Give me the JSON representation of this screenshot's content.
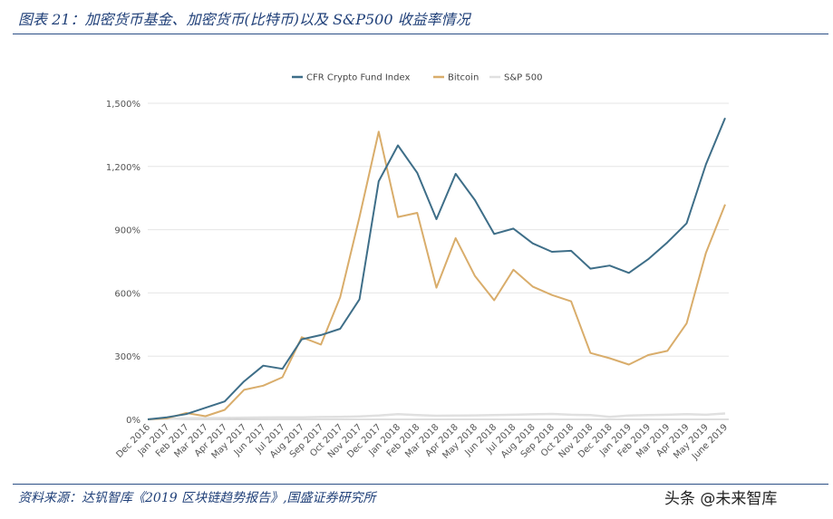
{
  "header": {
    "title": "图表 21：加密货币基金、加密货币(比特币)以及 S&P500 收益率情况"
  },
  "footer": {
    "source": "资料来源：达钒智库《2019 区块链趋势报告》,国盛证券研究所",
    "watermark": "头条 @未来智库"
  },
  "chart_data": {
    "type": "line",
    "x": [
      "Dec 2016",
      "Jan 2017",
      "Feb 2017",
      "Mar 2017",
      "Apr 2017",
      "May 2017",
      "Jun 2017",
      "Jul 2017",
      "Aug 2017",
      "Sep 2017",
      "Oct 2017",
      "Nov 2017",
      "Dec 2017",
      "Jan 2018",
      "Feb 2018",
      "Mar 2018",
      "Apr 2018",
      "May 2018",
      "Jun 2018",
      "Jul 2018",
      "Aug 2018",
      "Sep 2018",
      "Oct 2018",
      "Nov 2018",
      "Dec 2018",
      "Jan 2019",
      "Feb 2019",
      "Mar 2019",
      "Apr 2019",
      "May 2019",
      "June 2019"
    ],
    "yticks": [
      0,
      300,
      600,
      900,
      1200,
      1500
    ],
    "ytick_labels": [
      "0%",
      "300%",
      "600%",
      "900%",
      "1,200%",
      "1,500%"
    ],
    "ylim": [
      0,
      1500
    ],
    "legend_position": "top",
    "grid": "horizontal",
    "series": [
      {
        "name": "CFR Crypto Fund Index",
        "color": "#3e6e88",
        "values": [
          0,
          10,
          25,
          55,
          85,
          180,
          255,
          240,
          380,
          400,
          430,
          570,
          1130,
          1300,
          1170,
          950,
          1165,
          1040,
          880,
          905,
          835,
          795,
          800,
          715,
          730,
          695,
          760,
          840,
          930,
          1210,
          1430
        ]
      },
      {
        "name": "Bitcoin",
        "color": "#d9ad6b",
        "values": [
          0,
          5,
          30,
          15,
          45,
          140,
          160,
          200,
          390,
          355,
          580,
          960,
          1365,
          960,
          980,
          625,
          860,
          680,
          565,
          710,
          630,
          590,
          560,
          315,
          290,
          260,
          305,
          325,
          455,
          790,
          1020
        ]
      },
      {
        "name": "S&P 500",
        "color": "#e0e0e0",
        "values": [
          0,
          2,
          5,
          6,
          7,
          8,
          9,
          10,
          10,
          11,
          12,
          14,
          18,
          25,
          20,
          17,
          18,
          19,
          20,
          22,
          24,
          26,
          22,
          20,
          12,
          18,
          20,
          22,
          25,
          22,
          28
        ]
      }
    ]
  }
}
